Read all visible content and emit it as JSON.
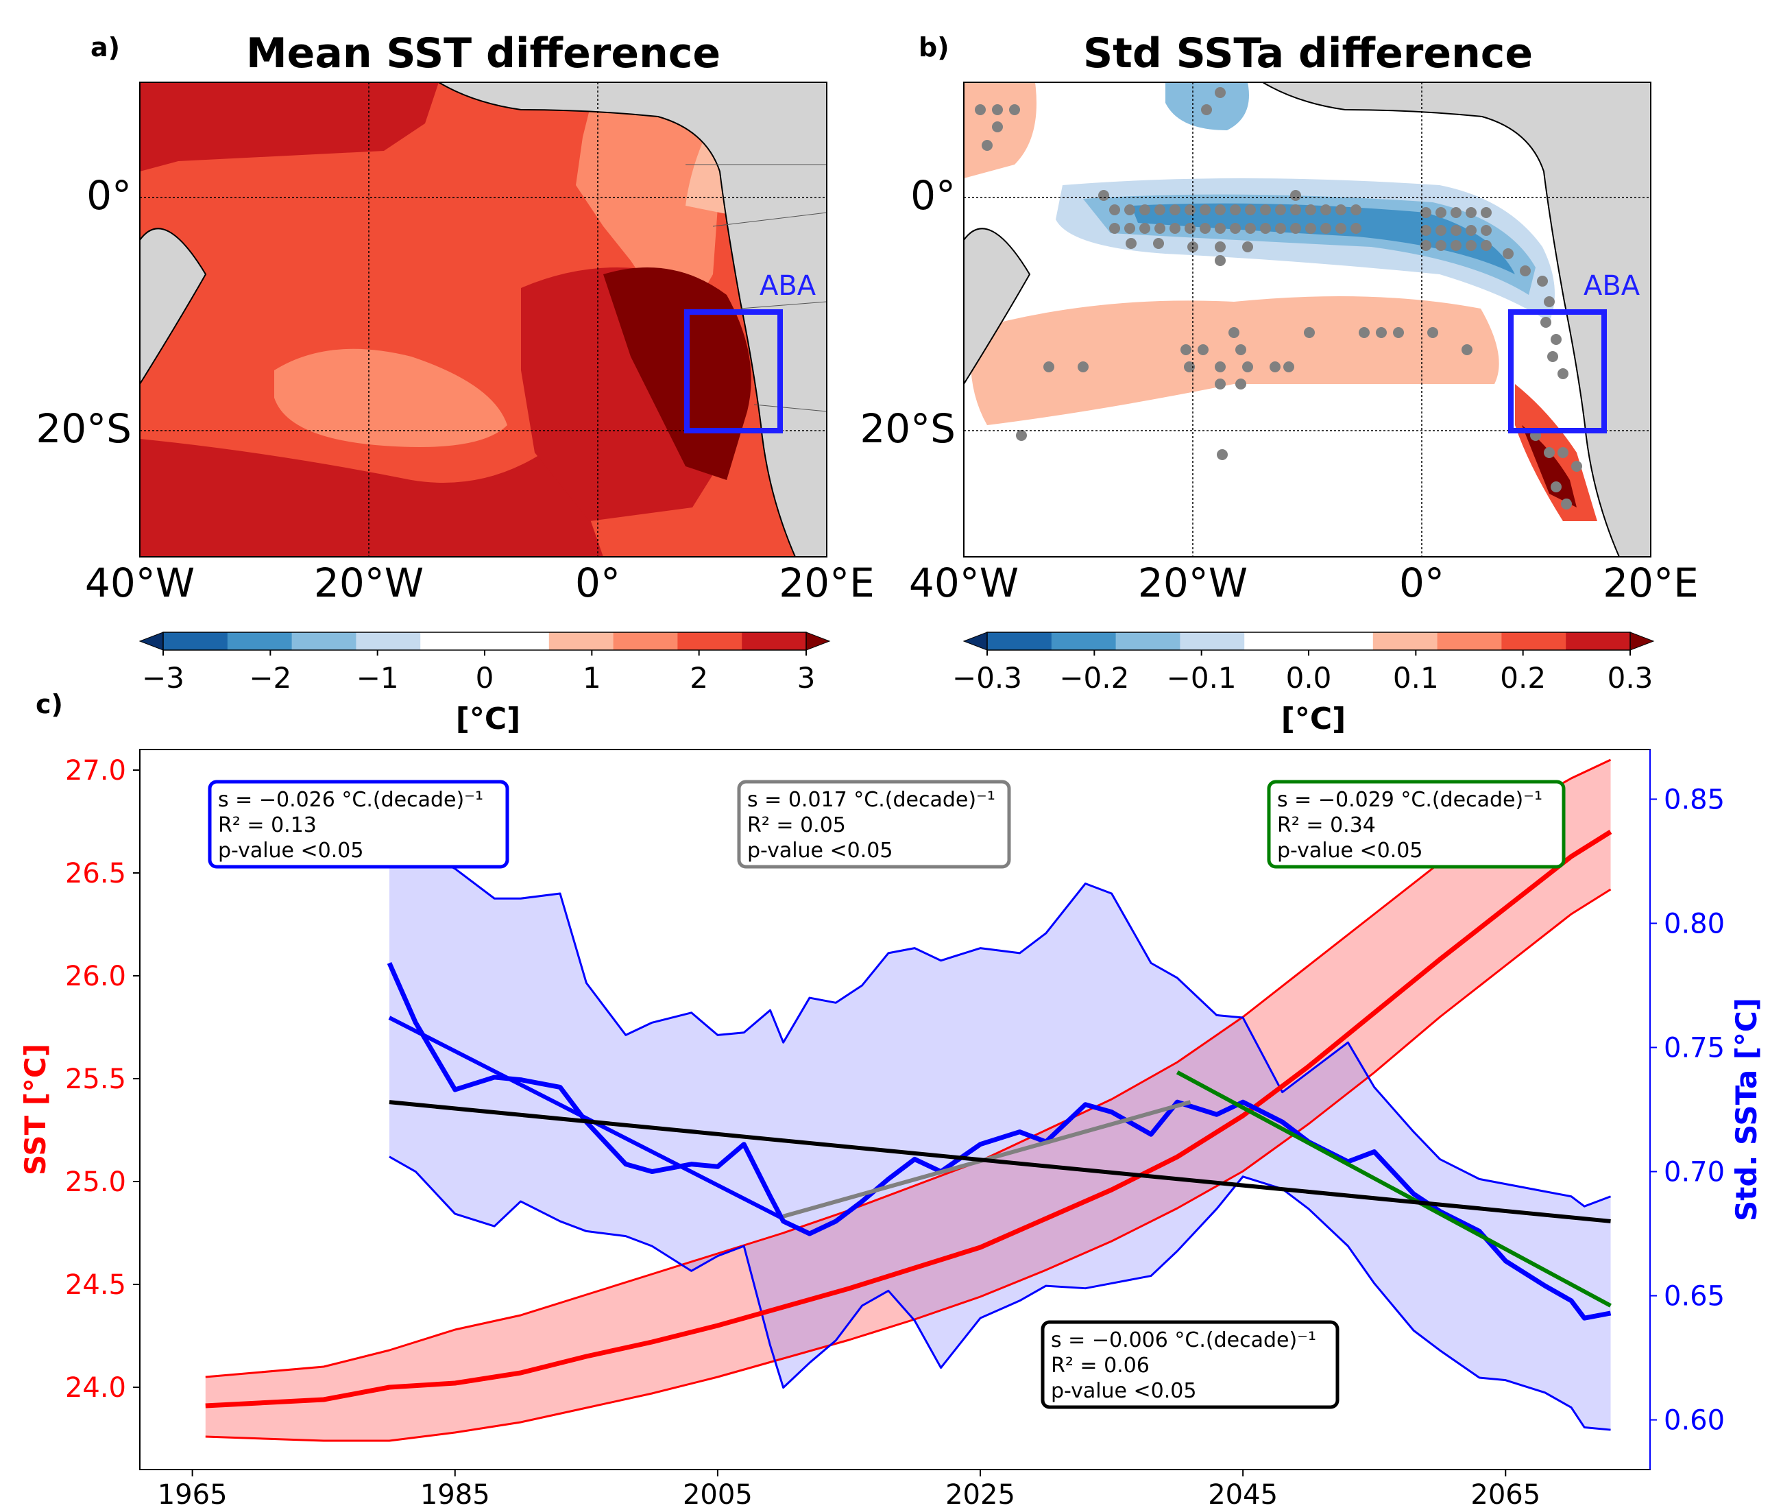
{
  "panels": {
    "a": {
      "label": "a)",
      "title": "Mean SST difference",
      "box_label": "ABA",
      "lat_ticks": [
        "0°",
        "20°S"
      ],
      "lon_ticks": [
        "40°W",
        "20°W",
        "0°",
        "20°E"
      ],
      "colorbar": {
        "ticks": [
          "−3",
          "−2",
          "−1",
          "0",
          "1",
          "2",
          "3"
        ],
        "unit": "[°C]",
        "levels": [
          -3,
          -2.5,
          -2,
          -1.5,
          -1,
          -0.5,
          0.5,
          1,
          1.5,
          2,
          2.5,
          3
        ],
        "colors": [
          "#08306b",
          "#1b65a9",
          "#4292c6",
          "#87bcde",
          "#c6dbef",
          "#ffffff",
          "#ffffff",
          "#fcbba1",
          "#fc8a6a",
          "#f14d36",
          "#c8191d",
          "#7f0000"
        ]
      }
    },
    "b": {
      "label": "b)",
      "title": "Std SSTa difference",
      "box_label": "ABA",
      "lat_ticks": [
        "0°",
        "20°S"
      ],
      "lon_ticks": [
        "40°W",
        "20°W",
        "0°",
        "20°E"
      ],
      "colorbar": {
        "ticks": [
          "−0.3",
          "−0.2",
          "−0.1",
          "0.0",
          "0.1",
          "0.2",
          "0.3"
        ],
        "unit": "[°C]",
        "colors": [
          "#08306b",
          "#1b65a9",
          "#4292c6",
          "#87bcde",
          "#c6dbef",
          "#ffffff",
          "#ffffff",
          "#fcbba1",
          "#fc8a6a",
          "#f14d36",
          "#c8191d",
          "#7f0000"
        ]
      }
    },
    "c": {
      "label": "c)"
    }
  },
  "map_colors": {
    "land": "#d3d3d3",
    "box": "#1f1fff",
    "stipple": "#808080"
  },
  "chart_data": [
    {
      "type": "line",
      "panel": "c",
      "x_ticks": [
        "1965",
        "1985",
        "2005",
        "2025",
        "2045",
        "2065"
      ],
      "xlim": [
        1961,
        2076
      ],
      "left_axis": {
        "label": "SST [°C]",
        "color": "#ff0000",
        "ticks": [
          "24.0",
          "24.5",
          "25.0",
          "25.5",
          "26.0",
          "26.5",
          "27.0"
        ],
        "ylim": [
          23.6,
          27.1
        ]
      },
      "right_axis": {
        "label": "Std. SSTa [°C]",
        "color": "#0000ff",
        "ticks": [
          "0.60",
          "0.65",
          "0.70",
          "0.75",
          "0.80",
          "0.85"
        ],
        "ylim": [
          0.58,
          0.87
        ]
      },
      "series": [
        {
          "axis": "left",
          "color": "#ff0000",
          "x": [
            1966,
            1975,
            1980,
            1985,
            1990,
            1995,
            2000,
            2005,
            2010,
            2015,
            2020,
            2025,
            2030,
            2035,
            2040,
            2045,
            2050,
            2055,
            2060,
            2065,
            2070,
            2073
          ],
          "mean": [
            23.91,
            23.94,
            24.0,
            24.02,
            24.07,
            24.15,
            24.22,
            24.3,
            24.39,
            24.48,
            24.58,
            24.68,
            24.82,
            24.96,
            25.12,
            25.32,
            25.56,
            25.82,
            26.08,
            26.33,
            26.58,
            26.7
          ],
          "lower": [
            23.76,
            23.74,
            23.74,
            23.78,
            23.83,
            23.9,
            23.97,
            24.05,
            24.14,
            24.23,
            24.33,
            24.44,
            24.57,
            24.71,
            24.87,
            25.05,
            25.28,
            25.53,
            25.8,
            26.05,
            26.3,
            26.42
          ],
          "upper": [
            24.05,
            24.1,
            24.18,
            24.28,
            24.35,
            24.45,
            24.55,
            24.65,
            24.75,
            24.86,
            24.98,
            25.1,
            25.25,
            25.4,
            25.58,
            25.8,
            26.05,
            26.3,
            26.55,
            26.78,
            26.96,
            27.05
          ]
        },
        {
          "axis": "right",
          "color": "#0000ff",
          "x": [
            1980,
            1982,
            1985,
            1988,
            1990,
            1993,
            1995,
            1998,
            2000,
            2003,
            2005,
            2007,
            2009,
            2010,
            2012,
            2014,
            2016,
            2018,
            2020,
            2022,
            2025,
            2028,
            2030,
            2033,
            2035,
            2038,
            2040,
            2043,
            2045,
            2048,
            2050,
            2053,
            2055,
            2058,
            2060,
            2063,
            2065,
            2068,
            2070,
            2071,
            2073
          ],
          "mean": [
            0.784,
            0.76,
            0.733,
            0.738,
            0.737,
            0.734,
            0.72,
            0.703,
            0.7,
            0.703,
            0.702,
            0.711,
            0.69,
            0.68,
            0.675,
            0.68,
            0.688,
            0.697,
            0.705,
            0.7,
            0.711,
            0.716,
            0.712,
            0.727,
            0.724,
            0.715,
            0.728,
            0.723,
            0.728,
            0.72,
            0.712,
            0.704,
            0.708,
            0.691,
            0.684,
            0.676,
            0.664,
            0.654,
            0.648,
            0.641,
            0.643
          ],
          "lower": [
            0.706,
            0.7,
            0.683,
            0.678,
            0.688,
            0.68,
            0.676,
            0.674,
            0.67,
            0.66,
            0.666,
            0.67,
            0.63,
            0.613,
            0.623,
            0.632,
            0.646,
            0.652,
            0.64,
            0.621,
            0.641,
            0.648,
            0.654,
            0.653,
            0.655,
            0.658,
            0.668,
            0.685,
            0.698,
            0.693,
            0.685,
            0.67,
            0.655,
            0.636,
            0.628,
            0.617,
            0.616,
            0.611,
            0.605,
            0.597,
            0.596
          ],
          "upper": [
            0.844,
            0.83,
            0.822,
            0.81,
            0.81,
            0.812,
            0.776,
            0.755,
            0.76,
            0.764,
            0.755,
            0.756,
            0.765,
            0.752,
            0.77,
            0.768,
            0.775,
            0.788,
            0.79,
            0.785,
            0.79,
            0.788,
            0.796,
            0.816,
            0.812,
            0.784,
            0.778,
            0.763,
            0.762,
            0.732,
            0.74,
            0.752,
            0.734,
            0.716,
            0.705,
            0.697,
            0.695,
            0.692,
            0.69,
            0.686,
            0.69
          ]
        }
      ],
      "trend_lines": [
        {
          "color": "#0000ff",
          "x": [
            1980,
            2010
          ],
          "y": [
            0.762,
            0.681
          ]
        },
        {
          "color": "#808080",
          "x": [
            2010,
            2041
          ],
          "y": [
            0.682,
            0.728
          ]
        },
        {
          "color": "#008000",
          "x": [
            2040,
            2073
          ],
          "y": [
            0.74,
            0.646
          ]
        },
        {
          "color": "#000000",
          "x": [
            1980,
            2073
          ],
          "y": [
            0.728,
            0.68
          ]
        }
      ],
      "annotations": [
        {
          "color": "#0000ff",
          "lines": [
            "s = −0.026 °C.(decade)⁻¹",
            "R² = 0.13",
            "p-value <0.05"
          ]
        },
        {
          "color": "#808080",
          "lines": [
            "s = 0.017 °C.(decade)⁻¹",
            "R² = 0.05",
            "p-value <0.05"
          ]
        },
        {
          "color": "#008000",
          "lines": [
            "s = −0.029 °C.(decade)⁻¹",
            "R² = 0.34",
            "p-value <0.05"
          ]
        },
        {
          "color": "#000000",
          "lines": [
            "s = −0.006 °C.(decade)⁻¹",
            "R² = 0.06",
            "p-value <0.05"
          ]
        }
      ]
    }
  ]
}
